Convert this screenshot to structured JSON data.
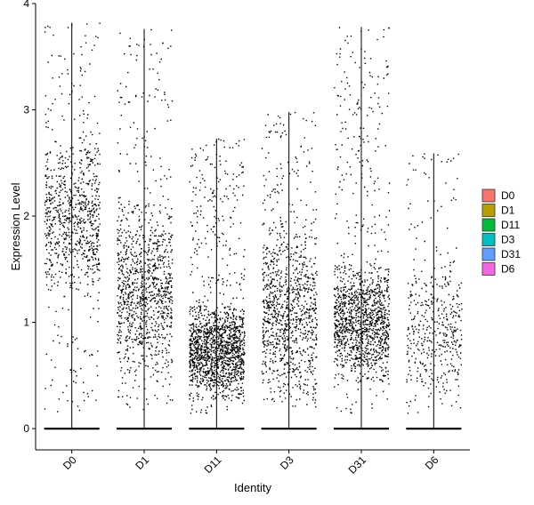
{
  "chart_data": {
    "type": "scatter",
    "subtype": "violin-jitter",
    "title": "",
    "xlabel": "Identity",
    "ylabel": "Expression Level",
    "categories": [
      "D0",
      "D1",
      "D11",
      "D3",
      "D31",
      "D6"
    ],
    "ylim": [
      -0.2,
      4.0
    ],
    "yticks": [
      0,
      1,
      2,
      3,
      4
    ],
    "grid": false,
    "legend_position": "right",
    "legend": [
      {
        "label": "D0",
        "color": "#F8766D"
      },
      {
        "label": "D1",
        "color": "#B79F00"
      },
      {
        "label": "D11",
        "color": "#00BA38"
      },
      {
        "label": "D3",
        "color": "#00BFC4"
      },
      {
        "label": "D31",
        "color": "#619CFF"
      },
      {
        "label": "D6",
        "color": "#F564E3"
      }
    ],
    "series": [
      {
        "name": "D0",
        "max": 3.82,
        "n_expressing": 900,
        "dense_range": [
          1.2,
          2.8
        ]
      },
      {
        "name": "D1",
        "max": 3.76,
        "n_expressing": 1100,
        "dense_range": [
          0.4,
          2.2
        ]
      },
      {
        "name": "D11",
        "max": 2.73,
        "n_expressing": 1600,
        "dense_range": [
          0.25,
          1.2
        ]
      },
      {
        "name": "D3",
        "max": 2.98,
        "n_expressing": 1050,
        "dense_range": [
          0.2,
          2.0
        ]
      },
      {
        "name": "D31",
        "max": 3.78,
        "n_expressing": 1400,
        "dense_range": [
          0.4,
          1.6
        ]
      },
      {
        "name": "D6",
        "max": 2.59,
        "n_expressing": 450,
        "dense_range": [
          0.2,
          1.6
        ]
      }
    ]
  }
}
